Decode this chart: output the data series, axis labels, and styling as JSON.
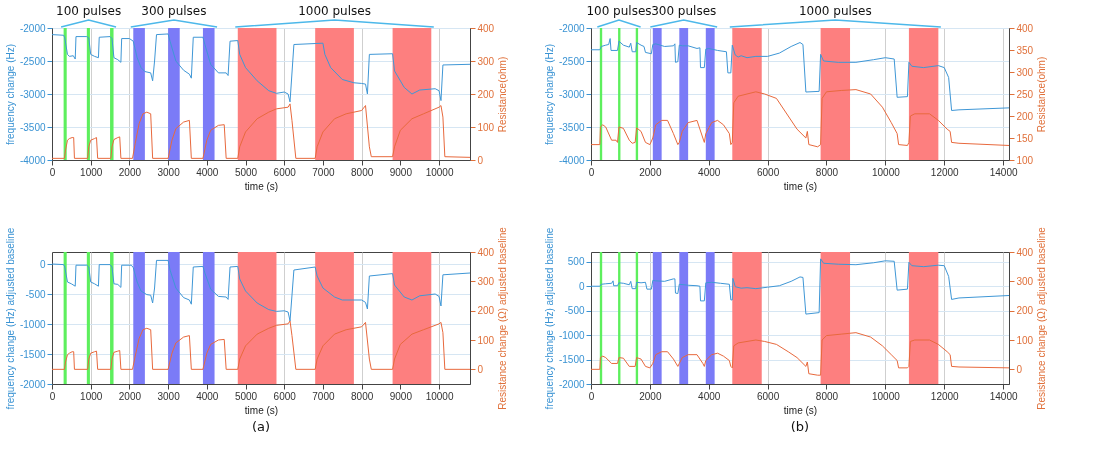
{
  "chart_data": [
    {
      "type": "line",
      "xlabel": "time (s)",
      "ylabel": "frequency change (Hz)",
      "y2label": "Resistance(ohm)",
      "xlim": [
        0,
        10800
      ],
      "xticks": [
        0,
        1000,
        2000,
        3000,
        4000,
        5000,
        6000,
        7000,
        8000,
        9000,
        10000
      ],
      "ylim": [
        -4000,
        -2000
      ],
      "yticks": [
        -4000,
        -3500,
        -3000,
        -2500,
        -2000
      ],
      "y2lim": [
        0,
        400
      ],
      "y2ticks": [
        0,
        100,
        200,
        300,
        400
      ],
      "grid": true,
      "bands": [
        {
          "axis": "x",
          "from": 300,
          "to": 380,
          "color": "#5def5d"
        },
        {
          "axis": "x",
          "from": 900,
          "to": 980,
          "color": "#5def5d"
        },
        {
          "axis": "x",
          "from": 1500,
          "to": 1590,
          "color": "#5def5d"
        },
        {
          "axis": "x",
          "from": 2100,
          "to": 2400,
          "color": "#7b7bf7"
        },
        {
          "axis": "x",
          "from": 3000,
          "to": 3300,
          "color": "#7b7bf7"
        },
        {
          "axis": "x",
          "from": 3900,
          "to": 4200,
          "color": "#7b7bf7"
        },
        {
          "axis": "x",
          "from": 4800,
          "to": 5800,
          "color": "#fd7f7f"
        },
        {
          "axis": "x",
          "from": 6800,
          "to": 7800,
          "color": "#fd7f7f"
        },
        {
          "axis": "x",
          "from": 8800,
          "to": 9800,
          "color": "#fd7f7f"
        }
      ],
      "series": [
        {
          "color": "#3f97d6",
          "x": [
            0,
            300,
            330,
            400,
            450,
            550,
            600,
            620,
            900,
            950,
            1000,
            1100,
            1200,
            1220,
            1500,
            1550,
            1600,
            1700,
            1780,
            1800,
            2000,
            2100,
            2200,
            2300,
            2400,
            2550,
            2600,
            2650,
            2700,
            3000,
            3050,
            3200,
            3400,
            3550,
            3600,
            3650,
            3900,
            3950,
            4100,
            4300,
            4500,
            4550,
            4600,
            4800,
            4850,
            5000,
            5300,
            5600,
            5800,
            6000,
            6100,
            6150,
            6250,
            7000,
            7050,
            7200,
            7500,
            7800,
            8000,
            8100,
            8150,
            8200,
            8800,
            8850,
            9100,
            9300,
            9500,
            9900,
            10000,
            10050,
            10100,
            10800
          ],
          "values": [
            -2100,
            -2110,
            -2150,
            -2400,
            -2430,
            -2420,
            -2470,
            -2130,
            -2130,
            -2150,
            -2400,
            -2430,
            -2450,
            -2140,
            -2130,
            -2160,
            -2450,
            -2480,
            -2520,
            -2160,
            -2160,
            -2200,
            -2450,
            -2600,
            -2660,
            -2680,
            -2800,
            -2500,
            -2100,
            -2090,
            -2200,
            -2500,
            -2640,
            -2700,
            -2760,
            -2140,
            -2140,
            -2250,
            -2550,
            -2680,
            -2680,
            -2720,
            -2200,
            -2190,
            -2400,
            -2600,
            -2800,
            -2950,
            -2990,
            -2970,
            -3000,
            -3120,
            -2250,
            -2230,
            -2400,
            -2600,
            -2780,
            -2830,
            -2840,
            -2850,
            -3000,
            -2400,
            -2390,
            -2650,
            -2900,
            -3000,
            -2940,
            -2920,
            -2950,
            -3100,
            -2560,
            -2550
          ]
        },
        {
          "color": "#e8693d",
          "axis": "y2",
          "x": [
            0,
            320,
            350,
            400,
            450,
            520,
            560,
            580,
            920,
            950,
            1000,
            1100,
            1150,
            1180,
            1520,
            1550,
            1600,
            1700,
            1750,
            1780,
            2080,
            2150,
            2250,
            2350,
            2450,
            2550,
            2600,
            3000,
            3100,
            3200,
            3400,
            3550,
            3600,
            3900,
            4000,
            4100,
            4300,
            4450,
            4500,
            4800,
            4850,
            5000,
            5300,
            5600,
            5800,
            6100,
            6150,
            6200,
            6300,
            6800,
            6850,
            7000,
            7300,
            7600,
            8000,
            8100,
            8200,
            8250,
            8800,
            8850,
            9000,
            9300,
            9600,
            10000,
            10050,
            10100,
            10150,
            10800
          ],
          "values": [
            5,
            5,
            30,
            60,
            65,
            68,
            68,
            5,
            5,
            40,
            60,
            65,
            68,
            5,
            5,
            40,
            62,
            68,
            70,
            5,
            5,
            50,
            110,
            140,
            145,
            140,
            5,
            5,
            60,
            95,
            115,
            120,
            5,
            5,
            60,
            90,
            105,
            107,
            5,
            5,
            40,
            85,
            125,
            145,
            155,
            160,
            170,
            120,
            5,
            5,
            40,
            85,
            125,
            140,
            150,
            165,
            40,
            10,
            10,
            40,
            90,
            125,
            140,
            160,
            165,
            130,
            10,
            8
          ]
        }
      ],
      "annotations": [
        "100 pulses",
        "300 pulses",
        "1000 pulses"
      ]
    },
    {
      "type": "line",
      "xlabel": "time (s)",
      "ylabel": "frequency change (Hz)",
      "y2label": "Resistance(ohm)",
      "xlim": [
        0,
        14200
      ],
      "xticks": [
        0,
        2000,
        4000,
        6000,
        8000,
        10000,
        12000,
        14000
      ],
      "ylim": [
        -4000,
        -2000
      ],
      "yticks": [
        -4000,
        -3500,
        -3000,
        -2500,
        -2000
      ],
      "y2lim": [
        100,
        400
      ],
      "y2ticks": [
        100,
        150,
        200,
        250,
        300,
        350,
        400
      ],
      "grid": true,
      "bands": [
        {
          "axis": "x",
          "from": 300,
          "to": 380,
          "color": "#5def5d"
        },
        {
          "axis": "x",
          "from": 920,
          "to": 1000,
          "color": "#5def5d"
        },
        {
          "axis": "x",
          "from": 1520,
          "to": 1600,
          "color": "#5def5d"
        },
        {
          "axis": "x",
          "from": 2100,
          "to": 2400,
          "color": "#7b7bf7"
        },
        {
          "axis": "x",
          "from": 3000,
          "to": 3300,
          "color": "#7b7bf7"
        },
        {
          "axis": "x",
          "from": 3900,
          "to": 4200,
          "color": "#7b7bf7"
        },
        {
          "axis": "x",
          "from": 4800,
          "to": 5800,
          "color": "#fd7f7f"
        },
        {
          "axis": "x",
          "from": 7800,
          "to": 8800,
          "color": "#fd7f7f"
        },
        {
          "axis": "x",
          "from": 10800,
          "to": 11800,
          "color": "#fd7f7f"
        }
      ],
      "series": [
        {
          "color": "#3f97d6",
          "x": [
            0,
            300,
            350,
            500,
            600,
            650,
            680,
            900,
            950,
            1100,
            1300,
            1350,
            1400,
            1520,
            1550,
            1700,
            1800,
            1850,
            2050,
            2100,
            2200,
            2500,
            2800,
            2850,
            2870,
            2950,
            3000,
            3100,
            3300,
            3600,
            3700,
            3720,
            3850,
            3900,
            4000,
            4300,
            4600,
            4650,
            4750,
            4800,
            4900,
            5000,
            5100,
            5300,
            5600,
            6000,
            6400,
            6800,
            7100,
            7200,
            7300,
            7750,
            7800,
            7900,
            8400,
            9000,
            9600,
            10000,
            10300,
            10400,
            10750,
            10800,
            10900,
            11300,
            11800,
            12000,
            12150,
            12250,
            12500,
            14200
          ],
          "values": [
            -2330,
            -2330,
            -2280,
            -2260,
            -2250,
            -2160,
            -2340,
            -2340,
            -2200,
            -2260,
            -2290,
            -2230,
            -2360,
            -2360,
            -2220,
            -2260,
            -2280,
            -2370,
            -2390,
            -2250,
            -2240,
            -2280,
            -2270,
            -2240,
            -2520,
            -2510,
            -2260,
            -2270,
            -2270,
            -2310,
            -2300,
            -2600,
            -2600,
            -2320,
            -2310,
            -2340,
            -2360,
            -2680,
            -2680,
            -2260,
            -2410,
            -2440,
            -2420,
            -2450,
            -2430,
            -2430,
            -2380,
            -2280,
            -2220,
            -2250,
            -2970,
            -2960,
            -2400,
            -2500,
            -2520,
            -2520,
            -2480,
            -2450,
            -2470,
            -3050,
            -3040,
            -2520,
            -2580,
            -2600,
            -2570,
            -2600,
            -2750,
            -3250,
            -3240,
            -3210
          ]
        },
        {
          "color": "#e8693d",
          "axis": "y2",
          "x": [
            0,
            300,
            320,
            400,
            500,
            700,
            850,
            900,
            950,
            1100,
            1300,
            1400,
            1500,
            1550,
            1700,
            1850,
            2000,
            2100,
            2200,
            2400,
            2600,
            2800,
            2950,
            3000,
            3100,
            3300,
            3600,
            3800,
            3850,
            3900,
            4100,
            4300,
            4500,
            4700,
            4750,
            4800,
            4850,
            5000,
            5300,
            5600,
            5900,
            6300,
            6700,
            7000,
            7300,
            7350,
            7400,
            7700,
            7800,
            7850,
            8000,
            8500,
            9000,
            9500,
            9900,
            10200,
            10400,
            10450,
            10750,
            10800,
            10850,
            11000,
            11500,
            11800,
            12100,
            12200,
            12250,
            12500,
            14200
          ],
          "values": [
            135,
            135,
            175,
            180,
            175,
            145,
            145,
            140,
            175,
            172,
            145,
            138,
            140,
            173,
            165,
            140,
            135,
            150,
            180,
            190,
            190,
            160,
            135,
            140,
            165,
            185,
            190,
            150,
            140,
            160,
            185,
            190,
            180,
            160,
            135,
            140,
            230,
            245,
            250,
            255,
            250,
            240,
            200,
            170,
            150,
            165,
            135,
            130,
            135,
            240,
            255,
            258,
            260,
            250,
            220,
            185,
            160,
            135,
            133,
            140,
            200,
            205,
            205,
            190,
            170,
            165,
            140,
            138,
            133
          ]
        }
      ],
      "annotations": [
        "100 pulses",
        "300 pulses",
        "1000 pulses"
      ]
    },
    {
      "type": "line",
      "xlabel": "time (s)",
      "ylabel": "frequency change (Hz) adjusted baseline",
      "y2label": "Resistance change (Ω) adjusted baseline",
      "xlim": [
        0,
        10800
      ],
      "xticks": [
        0,
        1000,
        2000,
        3000,
        4000,
        5000,
        6000,
        7000,
        8000,
        9000,
        10000
      ],
      "ylim": [
        -2000,
        200
      ],
      "yticks": [
        -2000,
        -1500,
        -1000,
        -500,
        0
      ],
      "y2lim": [
        -50,
        400
      ],
      "y2ticks": [
        0,
        100,
        200,
        300,
        400
      ],
      "grid": true,
      "bands": [
        {
          "axis": "x",
          "from": 300,
          "to": 380,
          "color": "#5def5d"
        },
        {
          "axis": "x",
          "from": 900,
          "to": 980,
          "color": "#5def5d"
        },
        {
          "axis": "x",
          "from": 1500,
          "to": 1590,
          "color": "#5def5d"
        },
        {
          "axis": "x",
          "from": 2100,
          "to": 2400,
          "color": "#7b7bf7"
        },
        {
          "axis": "x",
          "from": 3000,
          "to": 3300,
          "color": "#7b7bf7"
        },
        {
          "axis": "x",
          "from": 3900,
          "to": 4200,
          "color": "#7b7bf7"
        },
        {
          "axis": "x",
          "from": 4800,
          "to": 5800,
          "color": "#fd7f7f"
        },
        {
          "axis": "x",
          "from": 6800,
          "to": 7800,
          "color": "#fd7f7f"
        },
        {
          "axis": "x",
          "from": 8800,
          "to": 9800,
          "color": "#fd7f7f"
        }
      ],
      "series": [
        {
          "color": "#3f97d6",
          "x": [
            0,
            300,
            330,
            400,
            500,
            600,
            620,
            900,
            950,
            1000,
            1100,
            1200,
            1220,
            1500,
            1550,
            1600,
            1700,
            1780,
            1800,
            2050,
            2100,
            2200,
            2300,
            2450,
            2550,
            2600,
            2650,
            2700,
            3000,
            3050,
            3200,
            3400,
            3550,
            3600,
            3650,
            3900,
            3950,
            4100,
            4300,
            4500,
            4550,
            4600,
            4800,
            4850,
            5000,
            5300,
            5600,
            5800,
            6000,
            6100,
            6150,
            6250,
            6800,
            6850,
            7000,
            7300,
            7500,
            8000,
            8100,
            8150,
            8200,
            8800,
            8850,
            9100,
            9300,
            9500,
            9900,
            10000,
            10050,
            10100,
            10800
          ],
          "values": [
            0,
            -10,
            -50,
            -300,
            -330,
            -370,
            -20,
            -20,
            -50,
            -300,
            -330,
            -370,
            -10,
            -10,
            -50,
            -330,
            -340,
            -390,
            -20,
            -20,
            -60,
            -300,
            -450,
            -510,
            -520,
            -650,
            -400,
            60,
            60,
            -100,
            -400,
            -560,
            -600,
            -670,
            -50,
            -40,
            -150,
            -420,
            -540,
            -550,
            -590,
            -50,
            -40,
            -250,
            -450,
            -650,
            -760,
            -790,
            -780,
            -800,
            -950,
            -100,
            -50,
            -200,
            -400,
            -550,
            -600,
            -600,
            -640,
            -750,
            -200,
            -160,
            -350,
            -550,
            -600,
            -530,
            -500,
            -540,
            -700,
            -180,
            -150
          ]
        },
        {
          "color": "#e8693d",
          "axis": "y2",
          "x": [
            0,
            320,
            350,
            400,
            450,
            520,
            560,
            580,
            920,
            950,
            1000,
            1100,
            1150,
            1180,
            1520,
            1550,
            1600,
            1700,
            1750,
            1780,
            2080,
            2150,
            2250,
            2350,
            2450,
            2550,
            2600,
            3000,
            3100,
            3200,
            3400,
            3550,
            3600,
            3900,
            4000,
            4100,
            4300,
            4450,
            4500,
            4800,
            4850,
            5000,
            5300,
            5600,
            5800,
            6100,
            6150,
            6200,
            6300,
            6800,
            6850,
            7000,
            7300,
            7600,
            8000,
            8100,
            8200,
            8250,
            8800,
            8850,
            9000,
            9300,
            9600,
            10000,
            10050,
            10100,
            10150,
            10800
          ],
          "values": [
            0,
            0,
            25,
            50,
            55,
            60,
            60,
            0,
            0,
            35,
            55,
            60,
            62,
            0,
            0,
            35,
            58,
            62,
            64,
            0,
            0,
            45,
            105,
            135,
            140,
            135,
            0,
            0,
            55,
            90,
            110,
            115,
            0,
            0,
            55,
            85,
            100,
            102,
            0,
            0,
            35,
            80,
            120,
            140,
            150,
            155,
            165,
            115,
            0,
            0,
            35,
            80,
            120,
            135,
            145,
            160,
            35,
            0,
            0,
            35,
            85,
            120,
            135,
            155,
            160,
            125,
            0,
            0
          ]
        }
      ],
      "title": "(a)"
    },
    {
      "type": "line",
      "xlabel": "time (s)",
      "ylabel": "frequency change (Hz) adjusted baseline",
      "y2label": "Resistance change (Ω) adjusted baseline",
      "xlim": [
        0,
        14200
      ],
      "xticks": [
        0,
        2000,
        4000,
        6000,
        8000,
        10000,
        12000,
        14000
      ],
      "ylim": [
        -2000,
        700
      ],
      "yticks": [
        -2000,
        -1500,
        -1000,
        -500,
        0,
        500
      ],
      "y2lim": [
        -50,
        400
      ],
      "y2ticks": [
        0,
        100,
        200,
        300,
        400
      ],
      "grid": true,
      "bands": [
        {
          "axis": "x",
          "from": 300,
          "to": 380,
          "color": "#5def5d"
        },
        {
          "axis": "x",
          "from": 920,
          "to": 1000,
          "color": "#5def5d"
        },
        {
          "axis": "x",
          "from": 1520,
          "to": 1600,
          "color": "#5def5d"
        },
        {
          "axis": "x",
          "from": 2100,
          "to": 2400,
          "color": "#7b7bf7"
        },
        {
          "axis": "x",
          "from": 3000,
          "to": 3300,
          "color": "#7b7bf7"
        },
        {
          "axis": "x",
          "from": 3900,
          "to": 4200,
          "color": "#7b7bf7"
        },
        {
          "axis": "x",
          "from": 4800,
          "to": 5800,
          "color": "#fd7f7f"
        },
        {
          "axis": "x",
          "from": 7800,
          "to": 8800,
          "color": "#fd7f7f"
        },
        {
          "axis": "x",
          "from": 10800,
          "to": 11800,
          "color": "#fd7f7f"
        }
      ],
      "series": [
        {
          "color": "#3f97d6",
          "x": [
            0,
            300,
            350,
            500,
            700,
            750,
            770,
            900,
            950,
            1100,
            1300,
            1350,
            1400,
            1520,
            1550,
            1700,
            1850,
            1900,
            2050,
            2100,
            2200,
            2500,
            2800,
            2850,
            2870,
            2950,
            3000,
            3300,
            3600,
            3700,
            3720,
            3850,
            3900,
            4100,
            4400,
            4700,
            4750,
            4800,
            4820,
            4900,
            5100,
            5300,
            5600,
            6000,
            6400,
            6800,
            7100,
            7200,
            7300,
            7750,
            7800,
            7900,
            8400,
            9000,
            9600,
            10000,
            10300,
            10400,
            10750,
            10800,
            10900,
            11300,
            11800,
            12000,
            12150,
            12250,
            12500,
            14200
          ],
          "values": [
            0,
            0,
            40,
            50,
            60,
            110,
            10,
            10,
            70,
            60,
            30,
            100,
            -50,
            -50,
            80,
            70,
            80,
            -60,
            -60,
            120,
            110,
            100,
            150,
            150,
            -140,
            -150,
            40,
            20,
            10,
            0,
            -300,
            -300,
            70,
            80,
            60,
            40,
            -280,
            -280,
            160,
            -10,
            -40,
            -30,
            -50,
            -20,
            10,
            100,
            190,
            180,
            -570,
            -540,
            560,
            470,
            450,
            440,
            480,
            520,
            510,
            -80,
            -60,
            490,
            420,
            400,
            430,
            420,
            200,
            -270,
            -240,
            -190
          ]
        },
        {
          "color": "#e8693d",
          "axis": "y2",
          "x": [
            0,
            300,
            320,
            400,
            500,
            700,
            900,
            950,
            1100,
            1300,
            1500,
            1550,
            1700,
            1850,
            2000,
            2100,
            2200,
            2400,
            2600,
            2800,
            2950,
            3000,
            3100,
            3300,
            3600,
            3800,
            3850,
            3900,
            4100,
            4300,
            4500,
            4700,
            4750,
            4800,
            4850,
            5000,
            5300,
            5600,
            5900,
            6300,
            6700,
            7000,
            7300,
            7350,
            7400,
            7700,
            7800,
            7850,
            8000,
            8500,
            9000,
            9500,
            9900,
            10200,
            10400,
            10450,
            10750,
            10800,
            10850,
            11000,
            11500,
            11800,
            12100,
            12200,
            12250,
            12500,
            14200
          ],
          "values": [
            0,
            0,
            40,
            45,
            40,
            20,
            20,
            40,
            38,
            10,
            10,
            40,
            35,
            10,
            5,
            20,
            50,
            60,
            60,
            35,
            10,
            20,
            40,
            50,
            50,
            20,
            10,
            30,
            50,
            55,
            45,
            30,
            10,
            5,
            80,
            90,
            95,
            100,
            95,
            85,
            60,
            40,
            10,
            25,
            -15,
            -20,
            -20,
            100,
            115,
            120,
            125,
            110,
            80,
            50,
            30,
            5,
            5,
            10,
            95,
            100,
            100,
            85,
            60,
            50,
            10,
            8,
            5
          ]
        }
      ],
      "title": "(b)"
    }
  ]
}
